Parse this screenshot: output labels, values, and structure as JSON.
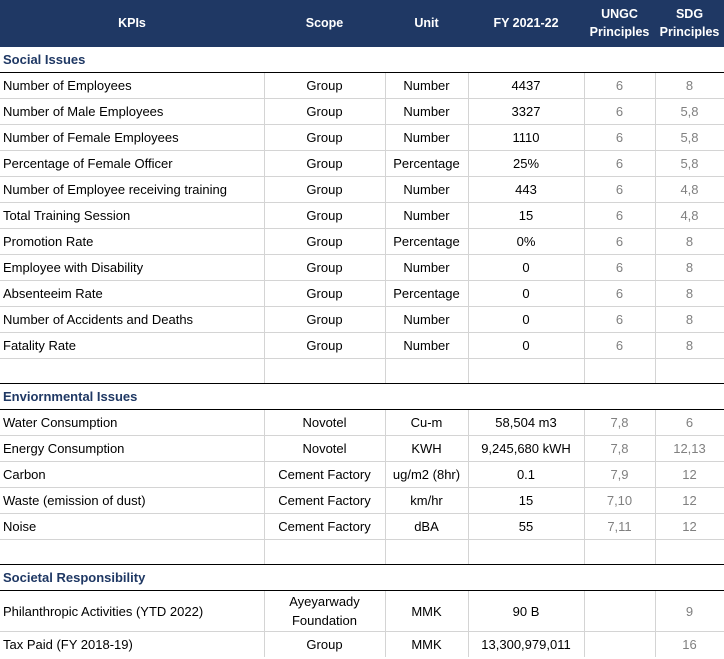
{
  "headers": {
    "kpi": "KPIs",
    "scope": "Scope",
    "unit": "Unit",
    "fy": "FY 2021-22",
    "ungc": "UNGC Principles",
    "sdg": "SDG Principles"
  },
  "sections": {
    "social": "Social Issues",
    "environmental": "Enviornmental Issues",
    "societal": "Societal Responsibility"
  },
  "social_rows": [
    {
      "kpi": "Number of Employees",
      "scope": "Group",
      "unit": "Number",
      "value": "4437",
      "ungc": "6",
      "sdg": "8"
    },
    {
      "kpi": "Number of Male Employees",
      "scope": "Group",
      "unit": "Number",
      "value": "3327",
      "ungc": "6",
      "sdg": "5,8"
    },
    {
      "kpi": "Number of Female Employees",
      "scope": "Group",
      "unit": "Number",
      "value": "1110",
      "ungc": "6",
      "sdg": "5,8"
    },
    {
      "kpi": "Percentage of Female Officer",
      "scope": "Group",
      "unit": "Percentage",
      "value": "25%",
      "ungc": "6",
      "sdg": "5,8"
    },
    {
      "kpi": "Number of Employee receiving training",
      "scope": "Group",
      "unit": "Number",
      "value": "443",
      "ungc": "6",
      "sdg": "4,8"
    },
    {
      "kpi": "Total Training Session",
      "scope": "Group",
      "unit": "Number",
      "value": "15",
      "ungc": "6",
      "sdg": "4,8"
    },
    {
      "kpi": "Promotion Rate",
      "scope": "Group",
      "unit": "Percentage",
      "value": "0%",
      "ungc": "6",
      "sdg": "8"
    },
    {
      "kpi": "Employee with Disability",
      "scope": "Group",
      "unit": "Number",
      "value": "0",
      "ungc": "6",
      "sdg": "8"
    },
    {
      "kpi": "Absenteeim Rate",
      "scope": "Group",
      "unit": "Percentage",
      "value": "0",
      "ungc": "6",
      "sdg": "8"
    },
    {
      "kpi": "Number of Accidents and Deaths",
      "scope": "Group",
      "unit": "Number",
      "value": "0",
      "ungc": "6",
      "sdg": "8"
    },
    {
      "kpi": "Fatality Rate",
      "scope": "Group",
      "unit": "Number",
      "value": "0",
      "ungc": "6",
      "sdg": "8"
    }
  ],
  "environmental_rows": [
    {
      "kpi": "Water Consumption",
      "scope": "Novotel",
      "unit": "Cu-m",
      "value": "58,504 m3",
      "ungc": "7,8",
      "sdg": "6"
    },
    {
      "kpi": "Energy Consumption",
      "scope": "Novotel",
      "unit": "KWH",
      "value": "9,245,680 kWH",
      "ungc": "7,8",
      "sdg": "12,13"
    },
    {
      "kpi": "Carbon",
      "scope": "Cement Factory",
      "unit": "ug/m2 (8hr)",
      "value": "0.1",
      "ungc": "7,9",
      "sdg": "12"
    },
    {
      "kpi": "Waste (emission of dust)",
      "scope": "Cement Factory",
      "unit": "km/hr",
      "value": "15",
      "ungc": "7,10",
      "sdg": "12"
    },
    {
      "kpi": "Noise",
      "scope": "Cement Factory",
      "unit": "dBA",
      "value": "55",
      "ungc": "7,11",
      "sdg": "12"
    }
  ],
  "societal_rows": [
    {
      "kpi": "Philanthropic Activities (YTD 2022)",
      "scope": "Ayeyarwady Foundation",
      "unit": "MMK",
      "value": "90 B",
      "ungc": "",
      "sdg": "9"
    },
    {
      "kpi": "Tax Paid  (FY 2018-19)",
      "scope": "Group",
      "unit": "MMK",
      "value": "13,300,979,011",
      "ungc": "",
      "sdg": "16"
    }
  ]
}
